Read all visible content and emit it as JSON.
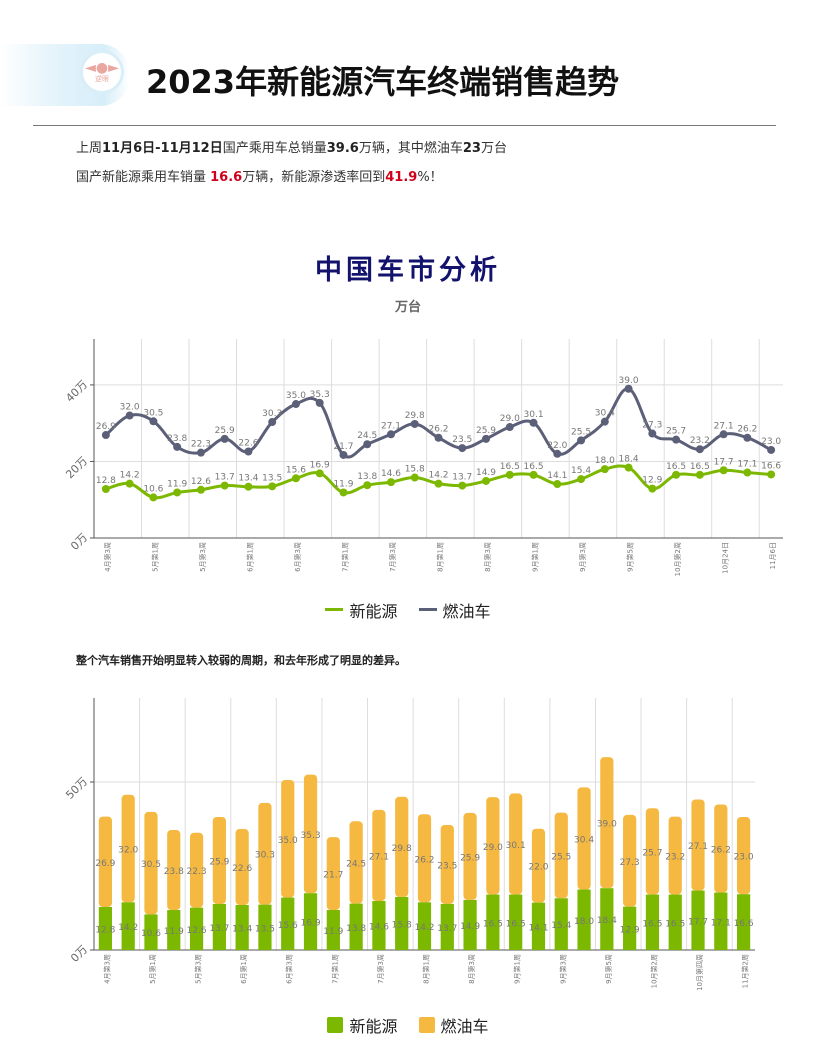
{
  "header": {
    "title": "2023年新能源汽车终端销售趋势",
    "logo_text": "逆眼"
  },
  "intro": {
    "line1": [
      {
        "text": "上周",
        "bold": false
      },
      {
        "text": "11月6日-11月12日",
        "bold": true
      },
      {
        "text": "国产乘用车总销量",
        "bold": false
      },
      {
        "text": "39.6",
        "bold": true
      },
      {
        "text": "万辆，其中燃油车",
        "bold": false
      },
      {
        "text": "23",
        "bold": true
      },
      {
        "text": "万台",
        "bold": false
      }
    ],
    "line2": [
      {
        "text": "国产新能源乘用车销量 ",
        "bold": false
      },
      {
        "text": "16.6",
        "red": true
      },
      {
        "text": "万辆，新能源渗透率回到",
        "bold": false
      },
      {
        "text": "41.9",
        "red": true
      },
      {
        "text": "%！",
        "bold": false
      }
    ]
  },
  "note": "整个汽车销售开始明显转入较弱的周期，和去年形成了明显的差异。",
  "colors": {
    "ev_line": "#7cb800",
    "fuel_line": "#5b5f78",
    "ev_bar": "#7cb800",
    "fuel_bar": "#f5b942",
    "grid": "#dddddd",
    "axis": "#555555",
    "label": "#777777"
  },
  "chart_data": [
    {
      "type": "line",
      "title": "中国车市分析",
      "subtitle": "万台",
      "x_tick_labels": [
        "4月第3周",
        "5月第1周",
        "5月第3周",
        "6月第1周",
        "6月第3周",
        "7月第1周",
        "7月第3周",
        "8月第1周",
        "8月第3周",
        "9月第1周",
        "9月第3周",
        "9月第5周",
        "10月第2周",
        "10月24日",
        "11月6日"
      ],
      "y_ticks": [
        {
          "value": 0,
          "label": "0万"
        },
        {
          "value": 20,
          "label": "20万"
        },
        {
          "value": 40,
          "label": "40万"
        }
      ],
      "ylim": [
        0,
        52
      ],
      "grid": true,
      "legend": "bottom",
      "series": [
        {
          "name": "新能源",
          "values": [
            12.8,
            14.2,
            10.6,
            11.9,
            12.6,
            13.7,
            13.4,
            13.5,
            15.6,
            16.9,
            11.9,
            13.8,
            14.6,
            15.8,
            14.2,
            13.7,
            14.9,
            16.5,
            16.5,
            14.1,
            15.4,
            18.0,
            18.4,
            12.9,
            16.5,
            16.5,
            17.7,
            17.1,
            16.6
          ]
        },
        {
          "name": "燃油车",
          "values": [
            26.9,
            32.0,
            30.5,
            23.8,
            22.3,
            25.9,
            22.6,
            30.3,
            35.0,
            35.3,
            21.7,
            24.5,
            27.1,
            29.8,
            26.2,
            23.5,
            25.9,
            29.0,
            30.1,
            22.0,
            25.5,
            30.4,
            39.0,
            27.3,
            25.7,
            23.2,
            27.1,
            26.2,
            23.0
          ]
        }
      ]
    },
    {
      "type": "bar",
      "stacked": true,
      "x_tick_labels": [
        "4月第3周",
        "5月第1周",
        "5月第3周",
        "6月第1周",
        "6月第3周",
        "7月第1周",
        "7月第3周",
        "8月第1周",
        "8月第3周",
        "9月第1周",
        "9月第3周",
        "9月第5周",
        "10月第2周",
        "10月第四周",
        "11月第2周"
      ],
      "y_ticks": [
        {
          "value": 0,
          "label": "0万"
        },
        {
          "value": 50,
          "label": "50万"
        }
      ],
      "ylim": [
        0,
        75
      ],
      "grid": true,
      "legend": "bottom",
      "series": [
        {
          "name": "新能源",
          "values": [
            12.8,
            14.2,
            10.6,
            11.9,
            12.6,
            13.7,
            13.4,
            13.5,
            15.6,
            16.9,
            11.9,
            13.8,
            14.6,
            15.8,
            14.2,
            13.7,
            14.9,
            16.5,
            16.5,
            14.1,
            15.4,
            18.0,
            18.4,
            12.9,
            16.5,
            16.5,
            17.7,
            17.1,
            16.6
          ]
        },
        {
          "name": "燃油车",
          "values": [
            26.9,
            32.0,
            30.5,
            23.8,
            22.3,
            25.9,
            22.6,
            30.3,
            35.0,
            35.3,
            21.7,
            24.5,
            27.1,
            29.8,
            26.2,
            23.5,
            25.9,
            29.0,
            30.1,
            22.0,
            25.5,
            30.4,
            39.0,
            27.3,
            25.7,
            23.2,
            27.1,
            26.2,
            23.0
          ]
        }
      ]
    }
  ]
}
